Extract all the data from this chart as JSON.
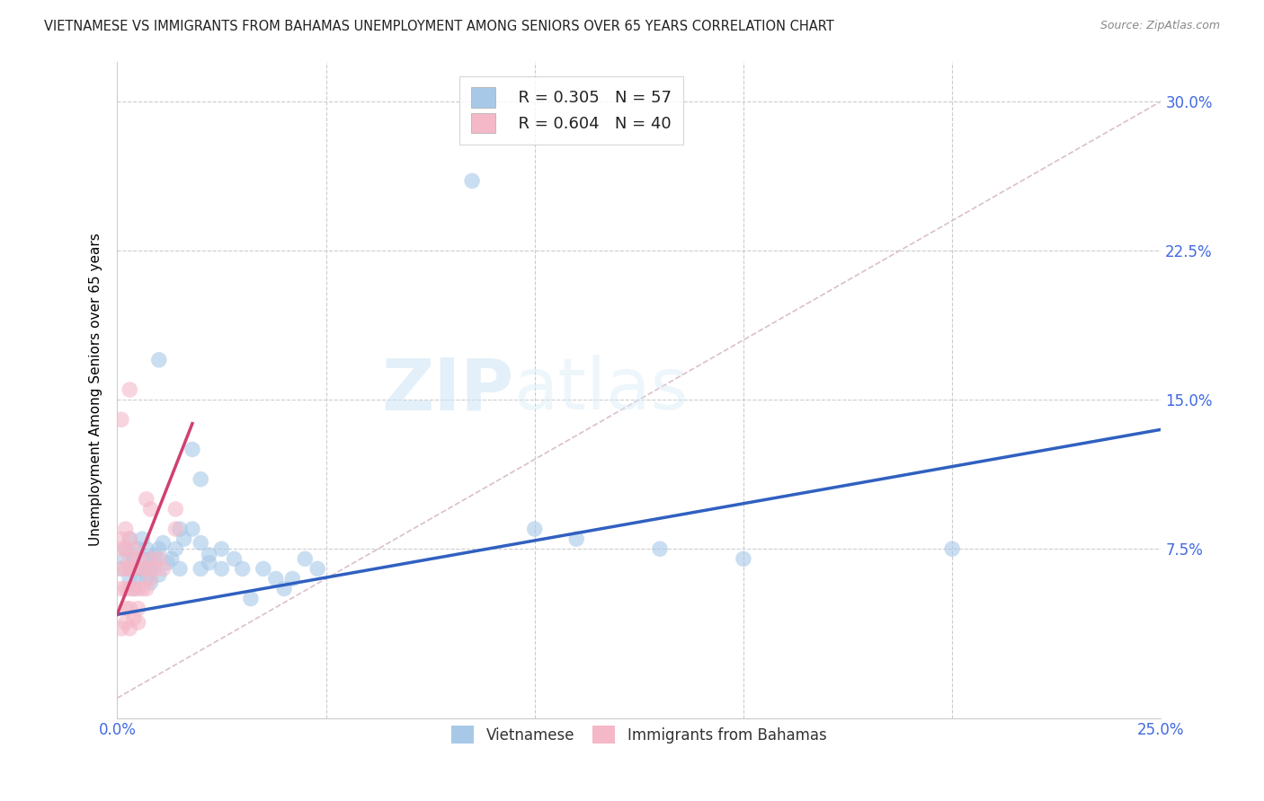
{
  "title": "VIETNAMESE VS IMMIGRANTS FROM BAHAMAS UNEMPLOYMENT AMONG SENIORS OVER 65 YEARS CORRELATION CHART",
  "source": "Source: ZipAtlas.com",
  "ylabel": "Unemployment Among Seniors over 65 years",
  "xlim": [
    0.0,
    0.25
  ],
  "ylim": [
    -0.01,
    0.32
  ],
  "xticks": [
    0.0,
    0.05,
    0.1,
    0.15,
    0.2,
    0.25
  ],
  "xticklabels": [
    "0.0%",
    "",
    "",
    "",
    "",
    "25.0%"
  ],
  "yticks": [
    0.0,
    0.075,
    0.15,
    0.225,
    0.3
  ],
  "yticklabels": [
    "",
    "7.5%",
    "15.0%",
    "22.5%",
    "30.0%"
  ],
  "legend_r1": "R = 0.305",
  "legend_n1": "N = 57",
  "legend_r2": "R = 0.604",
  "legend_n2": "N = 40",
  "color_blue": "#a8c8e8",
  "color_pink": "#f4b8c8",
  "line_blue": "#3060c0",
  "line_pink": "#d04070",
  "line_dashed_color": "#d0b0c0",
  "watermark_zip": "ZIP",
  "watermark_atlas": "atlas",
  "scatter_blue": [
    [
      0.001,
      0.065
    ],
    [
      0.002,
      0.07
    ],
    [
      0.002,
      0.075
    ],
    [
      0.003,
      0.08
    ],
    [
      0.003,
      0.06
    ],
    [
      0.003,
      0.065
    ],
    [
      0.004,
      0.07
    ],
    [
      0.004,
      0.065
    ],
    [
      0.004,
      0.055
    ],
    [
      0.005,
      0.075
    ],
    [
      0.005,
      0.065
    ],
    [
      0.005,
      0.06
    ],
    [
      0.006,
      0.08
    ],
    [
      0.006,
      0.065
    ],
    [
      0.006,
      0.07
    ],
    [
      0.007,
      0.075
    ],
    [
      0.007,
      0.065
    ],
    [
      0.007,
      0.06
    ],
    [
      0.008,
      0.07
    ],
    [
      0.008,
      0.065
    ],
    [
      0.008,
      0.058
    ],
    [
      0.009,
      0.072
    ],
    [
      0.009,
      0.068
    ],
    [
      0.01,
      0.075
    ],
    [
      0.01,
      0.062
    ],
    [
      0.011,
      0.078
    ],
    [
      0.012,
      0.068
    ],
    [
      0.013,
      0.07
    ],
    [
      0.014,
      0.075
    ],
    [
      0.015,
      0.065
    ],
    [
      0.015,
      0.085
    ],
    [
      0.016,
      0.08
    ],
    [
      0.018,
      0.085
    ],
    [
      0.02,
      0.078
    ],
    [
      0.02,
      0.065
    ],
    [
      0.022,
      0.072
    ],
    [
      0.022,
      0.068
    ],
    [
      0.025,
      0.075
    ],
    [
      0.025,
      0.065
    ],
    [
      0.028,
      0.07
    ],
    [
      0.03,
      0.065
    ],
    [
      0.032,
      0.05
    ],
    [
      0.035,
      0.065
    ],
    [
      0.038,
      0.06
    ],
    [
      0.04,
      0.055
    ],
    [
      0.042,
      0.06
    ],
    [
      0.045,
      0.07
    ],
    [
      0.048,
      0.065
    ],
    [
      0.01,
      0.17
    ],
    [
      0.018,
      0.125
    ],
    [
      0.02,
      0.11
    ],
    [
      0.1,
      0.085
    ],
    [
      0.11,
      0.08
    ],
    [
      0.13,
      0.075
    ],
    [
      0.15,
      0.07
    ],
    [
      0.2,
      0.075
    ],
    [
      0.085,
      0.26
    ]
  ],
  "scatter_pink": [
    [
      0.001,
      0.08
    ],
    [
      0.001,
      0.075
    ],
    [
      0.001,
      0.065
    ],
    [
      0.001,
      0.055
    ],
    [
      0.002,
      0.085
    ],
    [
      0.002,
      0.075
    ],
    [
      0.002,
      0.065
    ],
    [
      0.002,
      0.055
    ],
    [
      0.002,
      0.045
    ],
    [
      0.003,
      0.08
    ],
    [
      0.003,
      0.07
    ],
    [
      0.003,
      0.065
    ],
    [
      0.003,
      0.055
    ],
    [
      0.003,
      0.045
    ],
    [
      0.004,
      0.075
    ],
    [
      0.004,
      0.065
    ],
    [
      0.004,
      0.055
    ],
    [
      0.005,
      0.07
    ],
    [
      0.005,
      0.055
    ],
    [
      0.005,
      0.045
    ],
    [
      0.006,
      0.065
    ],
    [
      0.006,
      0.055
    ],
    [
      0.007,
      0.065
    ],
    [
      0.007,
      0.055
    ],
    [
      0.008,
      0.07
    ],
    [
      0.008,
      0.06
    ],
    [
      0.009,
      0.065
    ],
    [
      0.01,
      0.07
    ],
    [
      0.011,
      0.065
    ],
    [
      0.001,
      0.14
    ],
    [
      0.003,
      0.155
    ],
    [
      0.007,
      0.1
    ],
    [
      0.008,
      0.095
    ],
    [
      0.014,
      0.095
    ],
    [
      0.014,
      0.085
    ],
    [
      0.001,
      0.035
    ],
    [
      0.002,
      0.038
    ],
    [
      0.003,
      0.035
    ],
    [
      0.004,
      0.04
    ],
    [
      0.005,
      0.038
    ]
  ],
  "blue_line_x": [
    0.0,
    0.25
  ],
  "blue_line_y": [
    0.042,
    0.135
  ],
  "pink_line_x": [
    0.0,
    0.018
  ],
  "pink_line_y": [
    0.042,
    0.138
  ],
  "dash_line_x": [
    0.0,
    0.25
  ],
  "dash_line_y": [
    0.0,
    0.3
  ]
}
